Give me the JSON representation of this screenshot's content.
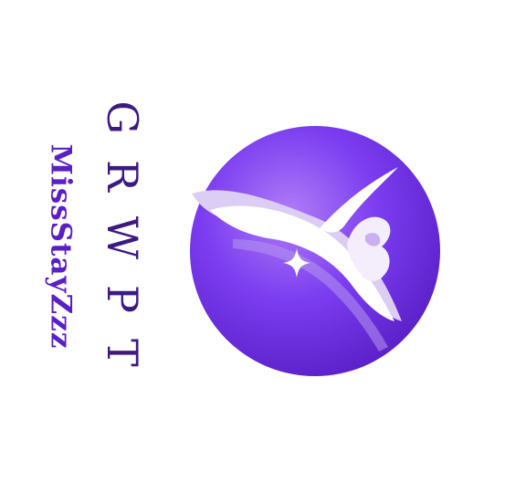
{
  "brand": {
    "title": "GRWPT",
    "handle": "MissStayZzz"
  },
  "colors": {
    "background": "#ffffff",
    "title_text": "#3d1a82",
    "handle_text": "#5a1fc7",
    "circle_light": "#a46cf5",
    "circle_mid": "#7b3df0",
    "circle_dark": "#5a1fc7",
    "swoosh": "#ffffff",
    "swoosh_shadow": "#d8c8f5"
  },
  "icons": {
    "emblem": "purple-circle-horn-emblem",
    "sparkle": "sparkle-star-icon"
  }
}
